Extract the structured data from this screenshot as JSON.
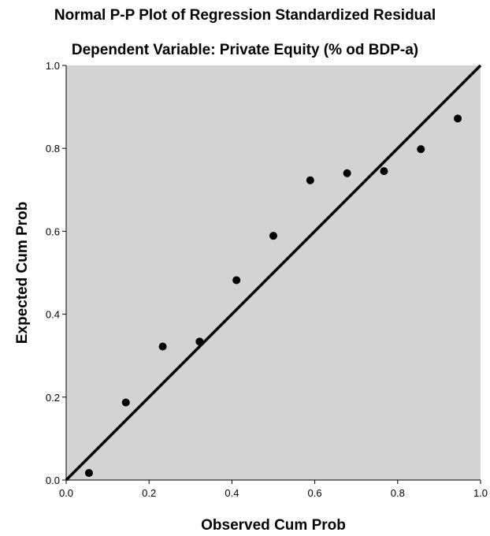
{
  "chart_data": {
    "type": "scatter",
    "title": "Normal P-P Plot of Regression Standardized Residual",
    "subtitle": "Dependent Variable: Private Equity (% od BDP-a)",
    "xlabel": "Observed Cum Prob",
    "ylabel": "Expected Cum Prob",
    "xlim": [
      0,
      1
    ],
    "ylim": [
      0,
      1
    ],
    "xticks": [
      "0.0",
      "0.2",
      "0.4",
      "0.6",
      "0.8",
      "1.0"
    ],
    "yticks": [
      "0.0",
      "0.2",
      "0.4",
      "0.6",
      "0.8",
      "1.0"
    ],
    "grid": false,
    "reference_line": {
      "x": [
        0,
        1
      ],
      "y": [
        0,
        1
      ]
    },
    "points": [
      {
        "x": 0.055,
        "y": 0.017
      },
      {
        "x": 0.144,
        "y": 0.187
      },
      {
        "x": 0.233,
        "y": 0.322
      },
      {
        "x": 0.322,
        "y": 0.334
      },
      {
        "x": 0.411,
        "y": 0.482
      },
      {
        "x": 0.5,
        "y": 0.589
      },
      {
        "x": 0.589,
        "y": 0.723
      },
      {
        "x": 0.678,
        "y": 0.74
      },
      {
        "x": 0.767,
        "y": 0.745
      },
      {
        "x": 0.856,
        "y": 0.798
      },
      {
        "x": 0.945,
        "y": 0.872
      }
    ],
    "colors": {
      "plot_background": "#d3d3d3",
      "points": "#000000",
      "reference_line": "#000000"
    }
  }
}
